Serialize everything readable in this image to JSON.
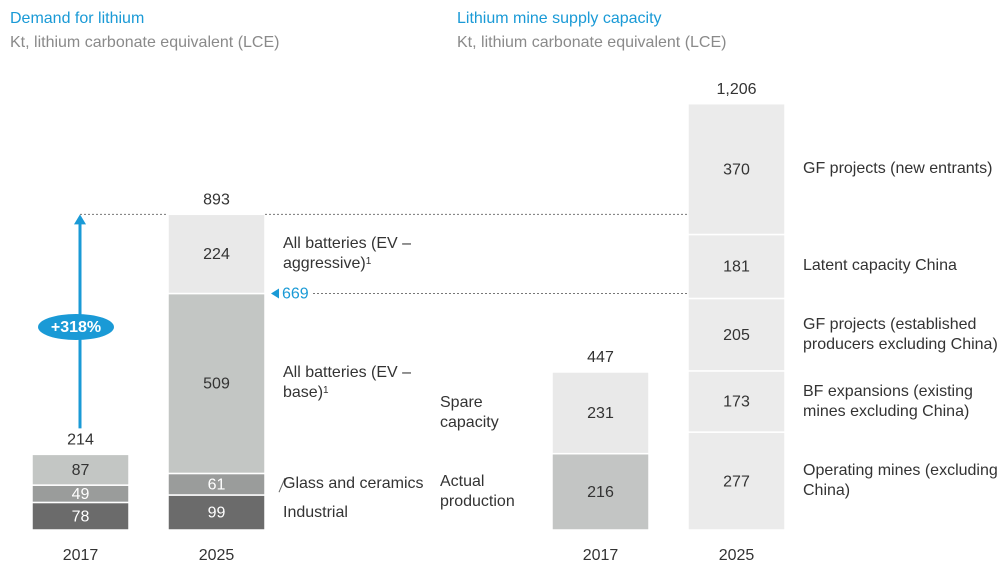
{
  "chart_data": [
    {
      "type": "stacked-bar",
      "title": "Demand for lithium",
      "subtitle": "Kt, lithium carbonate equivalent (LCE)",
      "categories": [
        "2017",
        "2025"
      ],
      "series": [
        {
          "name": "Industrial",
          "color": "#6b6b6b",
          "values": [
            78,
            99
          ]
        },
        {
          "name": "Glass and ceramics",
          "color": "#9a9c9b",
          "values": [
            49,
            61
          ]
        },
        {
          "name": "All batteries (EV – base)",
          "footnote": "1",
          "color": "#c3c6c4",
          "values": [
            87,
            509
          ]
        },
        {
          "name": "All batteries (EV – aggressive)",
          "footnote": "1",
          "color": "#e9e9e9",
          "values": [
            null,
            224
          ]
        }
      ],
      "totals": [
        214,
        893
      ],
      "reference_value": 669,
      "annotation": "+318%"
    },
    {
      "type": "stacked-bar",
      "title": "Lithium mine supply capacity",
      "subtitle": "Kt, lithium carbonate equivalent (LCE)",
      "categories": [
        "2017",
        "2025"
      ],
      "series": [
        {
          "name": "Actual production",
          "color": "#c3c5c4",
          "values": [
            216,
            null
          ]
        },
        {
          "name": "Spare capacity",
          "color": "#e9e9e9",
          "values": [
            231,
            null
          ]
        },
        {
          "name": "Operating mines (excluding China)",
          "color": "#ebebeb",
          "values": [
            null,
            277
          ]
        },
        {
          "name": "BF expansions (existing mines excluding China)",
          "color": "#ebebeb",
          "values": [
            null,
            173
          ]
        },
        {
          "name": "GF projects (established producers excluding China)",
          "color": "#ebebeb",
          "values": [
            null,
            205
          ]
        },
        {
          "name": "Latent capacity China",
          "color": "#ebebeb",
          "values": [
            null,
            181
          ]
        },
        {
          "name": "GF projects (new entrants)",
          "color": "#ebebeb",
          "values": [
            null,
            370
          ]
        }
      ],
      "totals": [
        447,
        1206
      ],
      "total_labels": [
        "447",
        "1,206"
      ]
    }
  ]
}
